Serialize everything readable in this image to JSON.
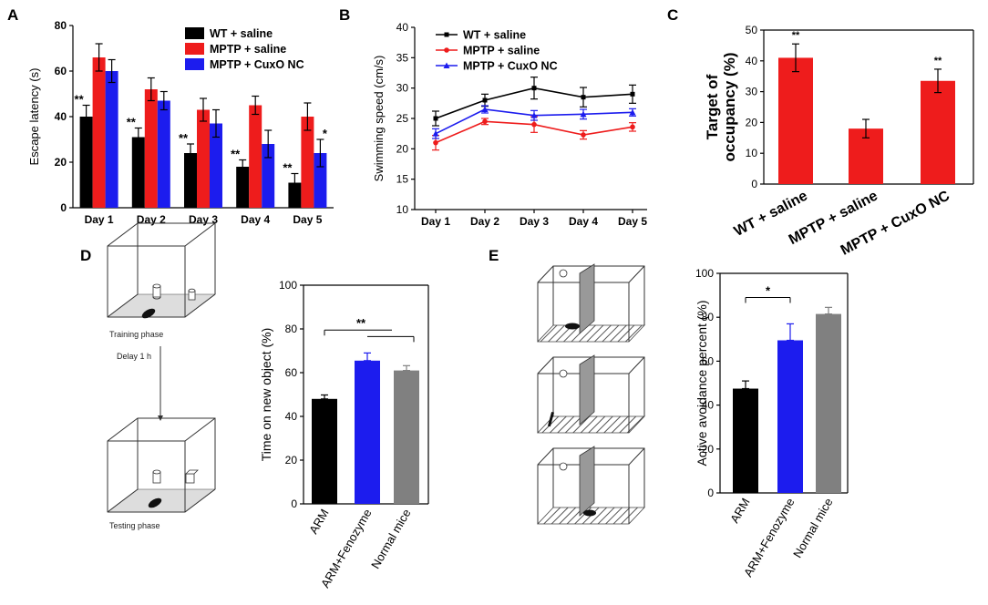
{
  "panels": {
    "a": "A",
    "b": "B",
    "c": "C",
    "d": "D",
    "e": "E"
  },
  "chart_data": [
    {
      "id": "A",
      "type": "bar",
      "title": "",
      "xlabel": "",
      "ylabel": "Escape latency (s)",
      "ylim": [
        0,
        80
      ],
      "yticks": [
        "0",
        "20",
        "40",
        "60",
        "80"
      ],
      "categories": [
        "Day 1",
        "Day 2",
        "Day 3",
        "Day 4",
        "Day 5"
      ],
      "series": [
        {
          "name": "WT + saline",
          "color": "#000000",
          "values": [
            40,
            31,
            24,
            18,
            11
          ],
          "errors": [
            5,
            4,
            4,
            3,
            4
          ]
        },
        {
          "name": "MPTP + saline",
          "color": "#ee1c1c",
          "values": [
            66,
            52,
            43,
            45,
            40
          ],
          "errors": [
            6,
            5,
            5,
            4,
            6
          ]
        },
        {
          "name": "MPTP + CuxO NC",
          "color": "#1c1cee",
          "values": [
            60,
            47,
            37,
            28,
            24
          ],
          "errors": [
            5,
            4,
            6,
            6,
            6
          ]
        }
      ],
      "annotations": [
        {
          "category": 0,
          "series": 0,
          "text": "**"
        },
        {
          "category": 1,
          "series": 0,
          "text": "**"
        },
        {
          "category": 2,
          "series": 0,
          "text": "**"
        },
        {
          "category": 3,
          "series": 0,
          "text": "**"
        },
        {
          "category": 4,
          "series": 0,
          "text": "**"
        },
        {
          "category": 4,
          "series": 2,
          "text": "*"
        }
      ],
      "legend_position": "top-right"
    },
    {
      "id": "B",
      "type": "line",
      "title": "",
      "xlabel": "",
      "ylabel": "Swimming speed (cm/s)",
      "ylim": [
        10,
        40
      ],
      "yticks": [
        "10",
        "15",
        "20",
        "25",
        "30",
        "35",
        "40"
      ],
      "categories": [
        "Day 1",
        "Day 2",
        "Day 3",
        "Day 4",
        "Day 5"
      ],
      "series": [
        {
          "name": "WT + saline",
          "color": "#000000",
          "marker": "square",
          "values": [
            25,
            28,
            30,
            28.5,
            29
          ],
          "errors": [
            1.2,
            1,
            1.8,
            1.6,
            1.5
          ]
        },
        {
          "name": "MPTP + saline",
          "color": "#ee1c1c",
          "marker": "circle",
          "values": [
            21,
            24.5,
            24,
            22.3,
            23.6
          ],
          "errors": [
            1.2,
            0.5,
            1.3,
            0.7,
            0.7
          ]
        },
        {
          "name": "MPTP + CuxO NC",
          "color": "#1c1cee",
          "marker": "triangle",
          "values": [
            22.5,
            26.5,
            25.5,
            25.7,
            26
          ],
          "errors": [
            0.8,
            0.6,
            0.8,
            0.8,
            0.6
          ]
        }
      ],
      "legend_position": "top-left"
    },
    {
      "id": "C",
      "type": "bar",
      "title": "",
      "xlabel": "",
      "ylabel": "Target of occupancy (%)",
      "ylabel_lines": [
        "Target of",
        "occupancy (%)"
      ],
      "ylim": [
        0,
        50
      ],
      "yticks": [
        "0",
        "10",
        "20",
        "30",
        "40",
        "50"
      ],
      "categories": [
        "WT + saline",
        "MPTP + saline",
        "MPTP + CuxO NC"
      ],
      "values": [
        41,
        18,
        33.5
      ],
      "errors": [
        4.5,
        3,
        3.8
      ],
      "color": "#ee1c1c",
      "annotations": [
        {
          "category": 0,
          "text": "**"
        },
        {
          "category": 2,
          "text": "**"
        }
      ]
    },
    {
      "id": "D",
      "type": "bar",
      "title": "",
      "xlabel": "",
      "ylabel": "Time on new object (%)",
      "ylim": [
        0,
        100
      ],
      "yticks": [
        "0",
        "20",
        "40",
        "60",
        "80",
        "100"
      ],
      "categories": [
        "ARM",
        "ARM+Fenozyme",
        "Normal mice"
      ],
      "values": [
        48,
        65.5,
        61
      ],
      "errors": [
        1.8,
        3.5,
        2.2
      ],
      "colors": [
        "#000000",
        "#1c1cee",
        "#808080"
      ],
      "annotations": [
        {
          "text": "**"
        }
      ]
    },
    {
      "id": "E",
      "type": "bar",
      "title": "",
      "xlabel": "",
      "ylabel": "Active avoidance percent (%)",
      "ylim": [
        0,
        100
      ],
      "yticks": [
        "0",
        "20",
        "40",
        "60",
        "80",
        "100"
      ],
      "categories": [
        "ARM",
        "ARM+Fenozyme",
        "Normal mice"
      ],
      "values": [
        47.5,
        69.5,
        81.5
      ],
      "errors": [
        3.5,
        7.5,
        3
      ],
      "colors": [
        "#000000",
        "#1c1cee",
        "#808080"
      ],
      "annotations": [
        {
          "text": "*"
        }
      ]
    }
  ],
  "illustrations": {
    "d_training": "Training  phase",
    "d_delay": "Delay   1 h",
    "d_testing": "Testing phase"
  }
}
